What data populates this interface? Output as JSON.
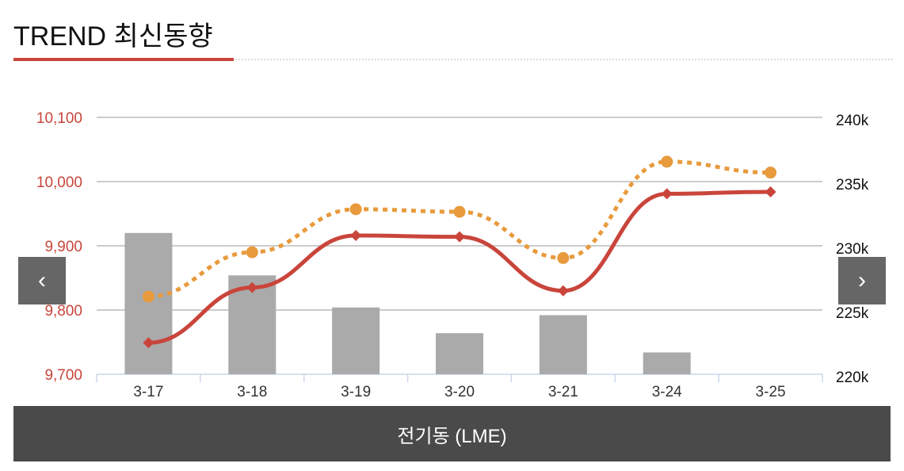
{
  "header": {
    "title": "TREND 최신동향"
  },
  "footer": {
    "label": "전기동 (LME)"
  },
  "nav": {
    "prev": "‹",
    "next": "›"
  },
  "chart_data": {
    "type": "bar+line",
    "categories": [
      "3-17",
      "3-18",
      "3-19",
      "3-20",
      "3-21",
      "3-24",
      "3-25"
    ],
    "left_axis": {
      "ticks": [
        "9,700",
        "9,800",
        "9,900",
        "10,000",
        "10,100"
      ],
      "range": [
        9700,
        10100
      ],
      "color": "#c9453b"
    },
    "right_axis": {
      "ticks": [
        "220k",
        "225k",
        "230k",
        "235k",
        "240k"
      ],
      "range": [
        220000,
        240000
      ]
    },
    "series": [
      {
        "name": "bars",
        "type": "bar",
        "axis": "right",
        "color": "#aaaaaa",
        "values": [
          231000,
          227700,
          225200,
          223200,
          224600,
          221700,
          null
        ]
      },
      {
        "name": "red-line",
        "type": "line",
        "axis": "left",
        "color": "#c9453b",
        "values": [
          9749,
          9835,
          9916,
          9914,
          9830,
          9981,
          9984
        ]
      },
      {
        "name": "orange-dotted",
        "type": "line",
        "axis": "left",
        "color": "#e89a3c",
        "values": [
          9821,
          9890,
          9957,
          9953,
          9881,
          10031,
          10014
        ]
      }
    ],
    "grid": true
  }
}
